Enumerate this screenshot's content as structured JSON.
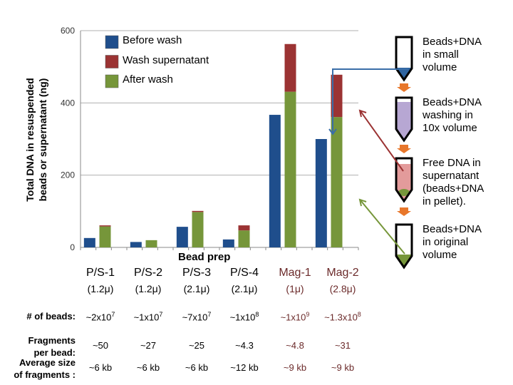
{
  "chart_data": {
    "type": "bar",
    "stacked_pairs": true,
    "ylabel_lines": [
      "Total DNA  in resuspended",
      "beads or supernatant (ng)"
    ],
    "xlabel": "Bead prep",
    "ylim": [
      0,
      600
    ],
    "yticks": [
      0,
      200,
      400,
      600
    ],
    "grid": true,
    "legend_placement": "top-left",
    "categories": [
      "P/S-1",
      "P/S-2",
      "P/S-3",
      "P/S-4",
      "Mag-1",
      "Mag-2"
    ],
    "category_sizes": [
      "(1.2μ)",
      "(1.2μ)",
      "(2.1μ)",
      "(2.1μ)",
      "(1μ)",
      "(2.8μ)"
    ],
    "series": [
      {
        "name": "Before wash",
        "color": "#1f4e8c",
        "values": [
          26,
          15,
          57,
          22,
          367,
          300
        ]
      },
      {
        "name": "Wash supernatant",
        "color": "#9b3333",
        "values": [
          3,
          0,
          3,
          14,
          132,
          117
        ]
      },
      {
        "name": "After wash",
        "color": "#76963a",
        "values": [
          58,
          20,
          98,
          47,
          431,
          361
        ]
      }
    ]
  },
  "table": {
    "rows": [
      {
        "label": [
          "# of beads:"
        ],
        "values": [
          [
            "~2x10",
            "7"
          ],
          [
            "~1x10",
            "7"
          ],
          [
            "~7x10",
            "7"
          ],
          [
            "~1x10",
            "8"
          ],
          [
            "~1x10",
            "9"
          ],
          [
            "~1.3x10",
            "8"
          ]
        ]
      },
      {
        "label": [
          "Fragments",
          "per bead:"
        ],
        "values": [
          "~50",
          "~27",
          "~25",
          "~4.3",
          "~4.8",
          "~31"
        ]
      },
      {
        "label": [
          "Average size",
          "of fragments :"
        ],
        "values": [
          "~6 kb",
          "~6 kb",
          "~6 kb",
          "~12 kb",
          "~9 kb",
          "~9 kb"
        ]
      }
    ]
  },
  "steps": [
    {
      "lines": [
        "Beads+DNA",
        "in small",
        "volume"
      ],
      "fill": "#2e64a0"
    },
    {
      "lines": [
        "Beads+DNA",
        "washing in",
        "10x volume"
      ],
      "fill": "#b7a7d3"
    },
    {
      "lines": [
        "Free DNA in",
        "supernatant",
        "(beads+DNA",
        "in pellet)."
      ],
      "fill": "#e39b9b"
    },
    {
      "lines": [
        "Beads+DNA",
        "in original",
        "volume"
      ],
      "fill": "#76963a"
    }
  ],
  "colors": {
    "step_arrow": "#e8772b",
    "mag_text": "#6b2a2a"
  }
}
